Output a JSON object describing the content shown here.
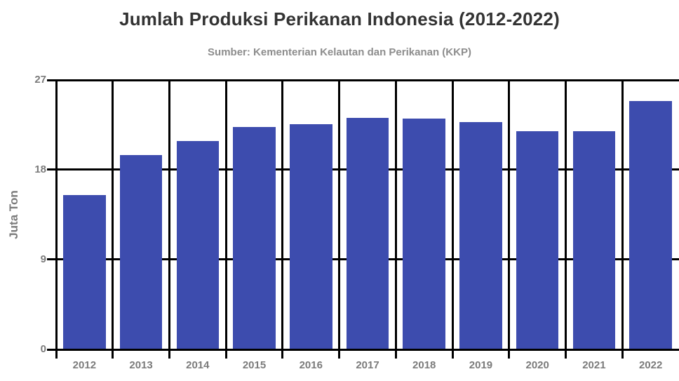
{
  "title": "Jumlah Produksi Perikanan Indonesia (2012-2022)",
  "subtitle": "Sumber: Kementerian Kelautan dan Perikanan (KKP)",
  "y_axis_label": "Juta Ton",
  "colors": {
    "bar": "#3D4CAE",
    "grid": "#000000",
    "tick_label": "#7b7b7b",
    "title": "#333333",
    "subtitle": "#8d8d8d",
    "background": "#ffffff"
  },
  "chart_data": {
    "type": "bar",
    "title": "Jumlah Produksi Perikanan Indonesia (2012-2022)",
    "subtitle": "Sumber: Kementerian Kelautan dan Perikanan (KKP)",
    "categories": [
      "2012",
      "2013",
      "2014",
      "2015",
      "2016",
      "2017",
      "2018",
      "2019",
      "2020",
      "2021",
      "2022"
    ],
    "values": [
      15.5,
      19.5,
      20.9,
      22.3,
      22.6,
      23.2,
      23.1,
      22.8,
      21.9,
      21.9,
      24.9
    ],
    "xlabel": "",
    "ylabel": "Juta Ton",
    "ylim": [
      0,
      27
    ],
    "yticks": [
      0,
      9,
      18,
      27
    ],
    "grid": "horizontal and vertical black gridlines, ticks extend past axes",
    "legend": "none",
    "bar_color": "#3D4CAE"
  }
}
